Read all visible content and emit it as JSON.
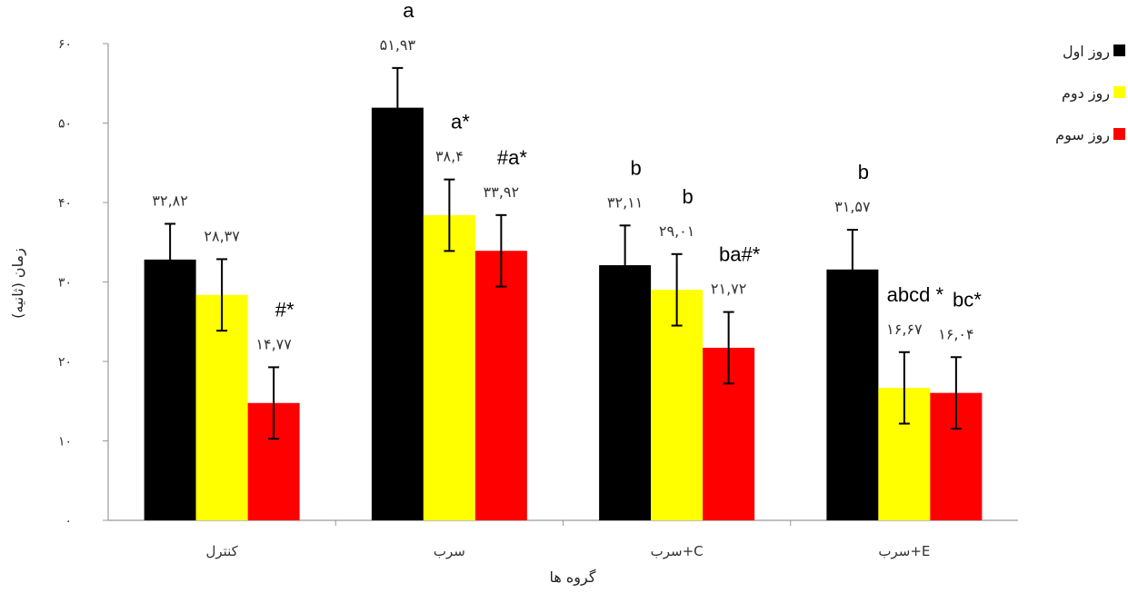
{
  "chart_data": {
    "type": "bar",
    "title": "",
    "xlabel": "گروه ها",
    "ylabel": "زمان (ثانیه)",
    "ylim": [
      0,
      60
    ],
    "yticks": [
      "۰",
      "۱۰",
      "۲۰",
      "۳۰",
      "۴۰",
      "۵۰",
      "۶۰"
    ],
    "categories": [
      "کنترل",
      "سرب",
      "سرب+C",
      "سرب+E"
    ],
    "legend_position": "top-right",
    "grid": false,
    "series": [
      {
        "name": "روز اول",
        "color": "#000000",
        "values": [
          32.82,
          51.93,
          32.11,
          31.57
        ],
        "errors": [
          4.5,
          5.0,
          5.0,
          5.0
        ],
        "labels": [
          "۳۲,۸۲",
          "۵۱,۹۳",
          "۳۲,۱۱",
          "۳۱,۵۷"
        ],
        "annotations": [
          "",
          "a",
          "b",
          "b"
        ]
      },
      {
        "name": "روز دوم",
        "color": "#ffff00",
        "values": [
          28.37,
          38.4,
          29.01,
          16.67
        ],
        "errors": [
          4.5,
          4.5,
          4.5,
          4.5
        ],
        "labels": [
          "۲۸,۳۷",
          "۳۸,۴",
          "۲۹,۰۱",
          "۱۶,۶۷"
        ],
        "annotations": [
          "",
          "a*",
          "b",
          "abcd *"
        ]
      },
      {
        "name": "روز سوم",
        "color": "#ff0000",
        "values": [
          14.77,
          33.92,
          21.72,
          16.04
        ],
        "errors": [
          4.5,
          4.5,
          4.5,
          4.5
        ],
        "labels": [
          "۱۴,۷۷",
          "۳۳,۹۲",
          "۲۱,۷۲",
          "۱۶,۰۴"
        ],
        "annotations": [
          "#*",
          "#a*",
          "ba#*",
          "bc*"
        ]
      }
    ]
  }
}
